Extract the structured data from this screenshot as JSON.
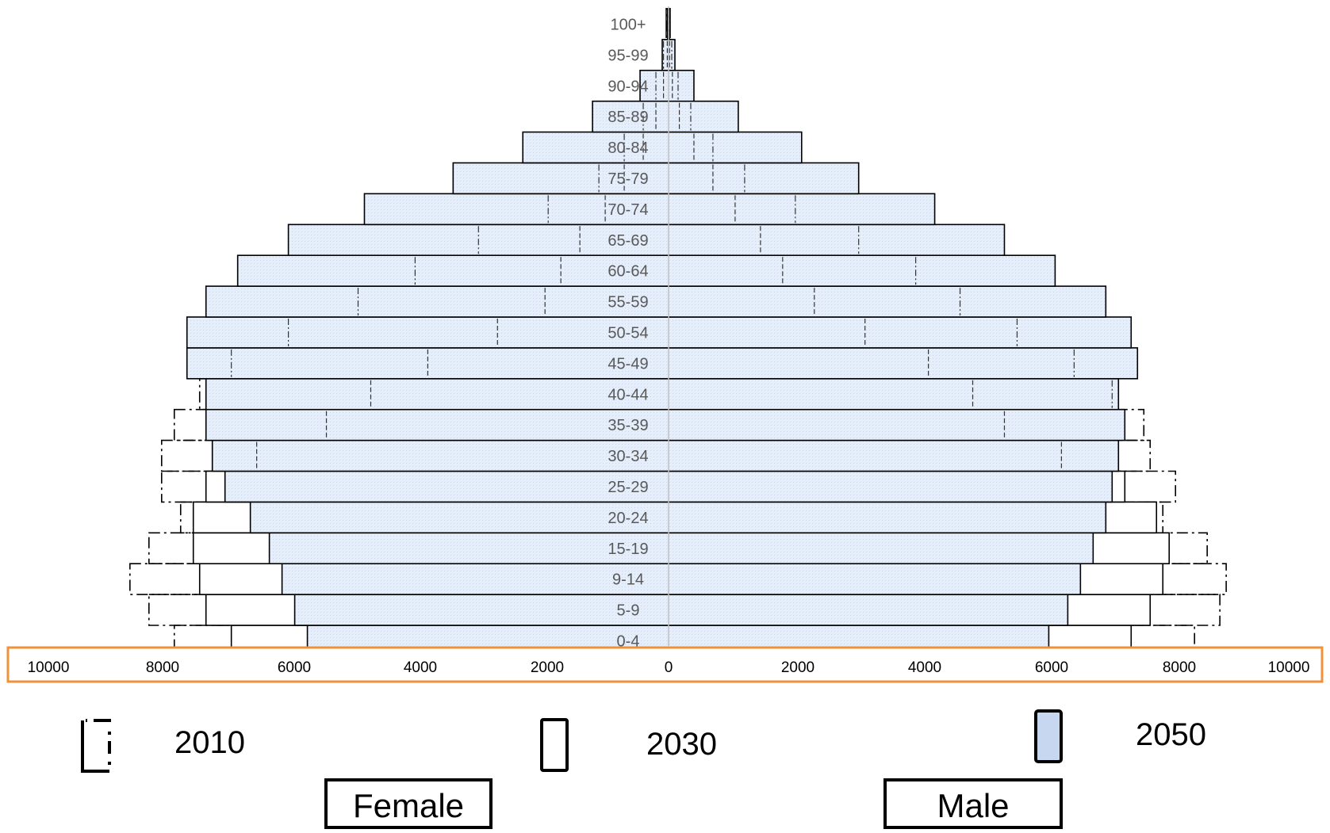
{
  "chart_data": {
    "type": "bar",
    "subtype": "population-pyramid",
    "categories": [
      "0-4",
      "5-9",
      "9-14",
      "15-19",
      "20-24",
      "25-29",
      "30-34",
      "35-39",
      "40-44",
      "45-49",
      "50-54",
      "55-59",
      "60-64",
      "65-69",
      "70-74",
      "75-79",
      "80-84",
      "85-89",
      "90-94",
      "95-99",
      "100+"
    ],
    "series": [
      {
        "name": "2010",
        "style": "dash-dot outline",
        "female": [
          7800,
          8200,
          8500,
          8200,
          7700,
          8000,
          8000,
          7800,
          7400,
          6900,
          6000,
          4900,
          4000,
          3000,
          1900,
          1100,
          700,
          400,
          200,
          80,
          20
        ],
        "male": [
          8300,
          8700,
          8800,
          8500,
          7800,
          8000,
          7600,
          7500,
          7000,
          6400,
          5500,
          4600,
          3900,
          3000,
          2000,
          1200,
          700,
          350,
          150,
          50,
          10
        ]
      },
      {
        "name": "2030",
        "style": "solid outline, white fill",
        "female": [
          6900,
          7300,
          7400,
          7500,
          7500,
          7300,
          6500,
          5400,
          4700,
          3800,
          2700,
          1950,
          1700,
          1400,
          1000,
          700,
          400,
          200,
          80,
          20,
          5
        ],
        "male": [
          7300,
          7600,
          7800,
          7900,
          7700,
          7200,
          6200,
          5300,
          4800,
          4100,
          3100,
          2300,
          1800,
          1450,
          1050,
          700,
          400,
          170,
          60,
          15,
          3
        ]
      },
      {
        "name": "2050",
        "style": "solid outline, light blue fill",
        "female": [
          5700,
          5900,
          6100,
          6300,
          6600,
          7000,
          7200,
          7300,
          7300,
          7600,
          7600,
          7300,
          6800,
          6000,
          4800,
          3400,
          2300,
          1200,
          450,
          100,
          15
        ],
        "male": [
          6000,
          6300,
          6500,
          6700,
          6900,
          7000,
          7100,
          7200,
          7100,
          7400,
          7300,
          6900,
          6100,
          5300,
          4200,
          3000,
          2100,
          1100,
          400,
          100,
          15
        ]
      }
    ],
    "xlim": [
      -10000,
      10000
    ],
    "x_tick_labels": [
      "10000",
      "8000",
      "6000",
      "4000",
      "2000",
      "0",
      "2000",
      "4000",
      "6000",
      "8000",
      "10000"
    ],
    "x_tick_values": [
      -10000,
      -8000,
      -6000,
      -4000,
      -2000,
      0,
      2000,
      4000,
      6000,
      8000,
      10000
    ],
    "legend": [
      "2010",
      "2030",
      "2050"
    ],
    "legend_position": "bottom",
    "side_labels": {
      "female": "Female",
      "male": "Male"
    },
    "grid": false
  },
  "colors": {
    "fill_2050": "#e6eef9",
    "fill_2050_legend": "#c7d7ef",
    "outline": "#000000",
    "axis_highlight": "#f0923a",
    "age_label": "#595959",
    "center_line": "#bfbfbf"
  }
}
